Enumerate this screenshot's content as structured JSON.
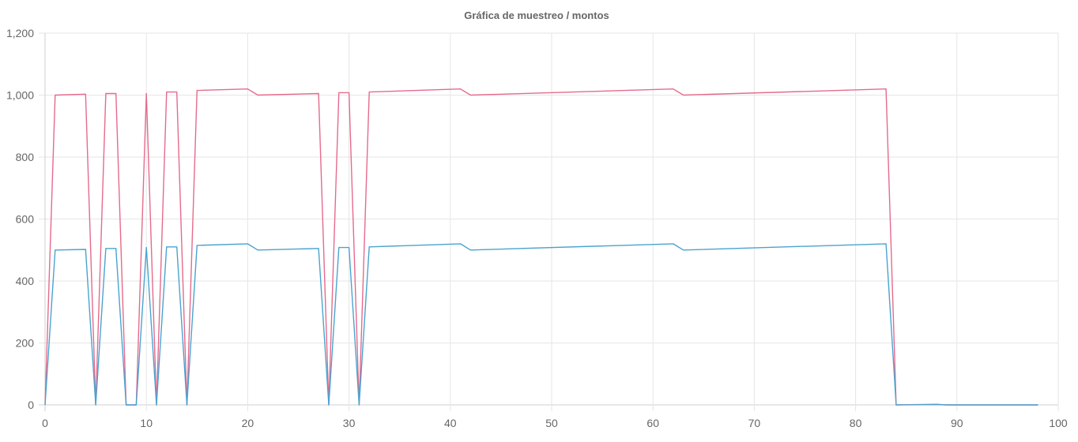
{
  "chart_data": {
    "type": "line",
    "title": "Gráfica de muestreo / montos",
    "xlabel": "",
    "ylabel": "",
    "xlim": [
      0,
      100
    ],
    "ylim": [
      0,
      1200
    ],
    "x_ticks": [
      "0",
      "10",
      "20",
      "30",
      "40",
      "50",
      "60",
      "70",
      "80",
      "90",
      "100"
    ],
    "y_ticks": [
      "0",
      "200",
      "400",
      "600",
      "800",
      "1,000",
      "1,200"
    ],
    "grid": true,
    "legend": "none",
    "series": [
      {
        "color": "#e56b8c",
        "x": [
          0,
          1,
          4,
          5,
          6,
          7,
          8,
          9,
          10,
          11,
          12,
          13,
          14,
          15,
          20,
          21,
          27,
          28,
          29,
          30,
          31,
          32,
          41,
          42,
          62,
          63,
          83,
          84,
          88,
          89,
          98
        ],
        "y": [
          0,
          1000,
          1003,
          0,
          1005,
          1005,
          0,
          0,
          1005,
          0,
          1010,
          1010,
          0,
          1015,
          1020,
          1000,
          1005,
          0,
          1008,
          1008,
          0,
          1010,
          1020,
          1000,
          1020,
          1000,
          1020,
          0,
          2,
          0,
          0
        ]
      },
      {
        "color": "#4ba3cf",
        "x": [
          0,
          1,
          4,
          5,
          6,
          7,
          8,
          9,
          10,
          11,
          12,
          13,
          14,
          15,
          20,
          21,
          27,
          28,
          29,
          30,
          31,
          32,
          41,
          42,
          62,
          63,
          83,
          84,
          88,
          89,
          98
        ],
        "y": [
          0,
          500,
          502,
          0,
          505,
          505,
          0,
          0,
          508,
          0,
          510,
          510,
          0,
          515,
          520,
          500,
          505,
          0,
          508,
          508,
          0,
          510,
          520,
          500,
          520,
          500,
          520,
          0,
          1,
          0,
          0
        ]
      }
    ]
  }
}
